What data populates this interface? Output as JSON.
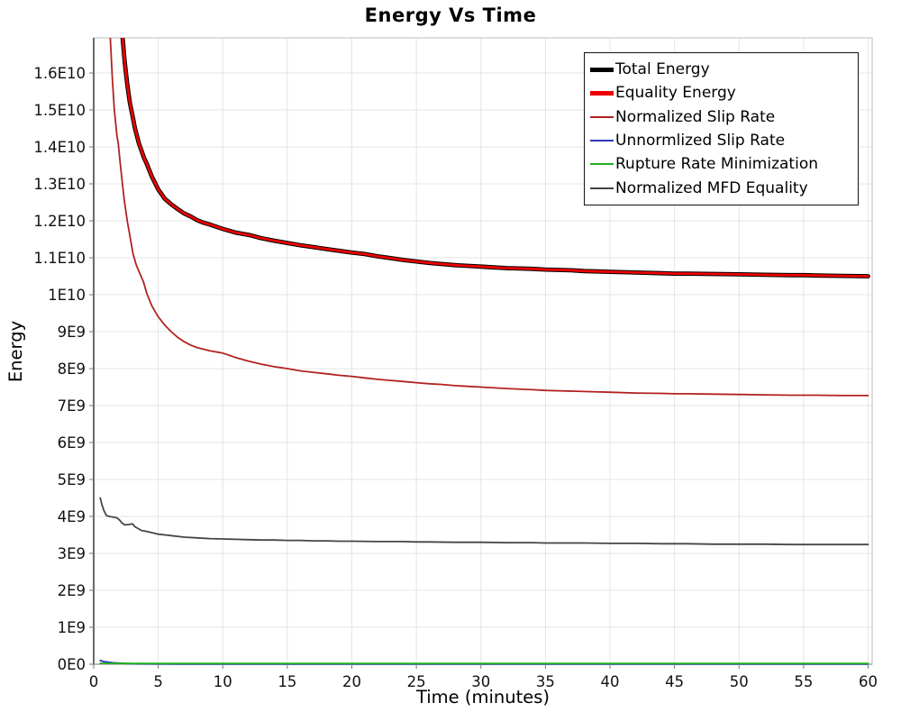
{
  "chart_data": {
    "type": "line",
    "title": "Energy Vs Time",
    "xlabel": "Time (minutes)",
    "ylabel": "Energy",
    "xlim": [
      0,
      60.3
    ],
    "ylim": [
      0,
      16970000000
    ],
    "grid": true,
    "legend_position": "top-right",
    "x_ticks": [
      0,
      5,
      10,
      15,
      20,
      25,
      30,
      35,
      40,
      45,
      50,
      55,
      60
    ],
    "y_ticks": [
      {
        "value": 0,
        "label": "0E0"
      },
      {
        "value": 1,
        "label": "1E9"
      },
      {
        "value": 2,
        "label": "2E9"
      },
      {
        "value": 3,
        "label": "3E9"
      },
      {
        "value": 4,
        "label": "4E9"
      },
      {
        "value": 5,
        "label": "5E9"
      },
      {
        "value": 6,
        "label": "6E9"
      },
      {
        "value": 7,
        "label": "7E9"
      },
      {
        "value": 8,
        "label": "8E9"
      },
      {
        "value": 9,
        "label": "9E9"
      },
      {
        "value": 10,
        "label": "1E10"
      },
      {
        "value": 11,
        "label": "1.1E10"
      },
      {
        "value": 12,
        "label": "1.2E10"
      },
      {
        "value": 13,
        "label": "1.3E10"
      },
      {
        "value": 14,
        "label": "1.4E10"
      },
      {
        "value": 15,
        "label": "1.5E10"
      },
      {
        "value": 16,
        "label": "1.6E10"
      }
    ],
    "y_values_unit": "1E9",
    "colors": {
      "background": "#ffffff",
      "grid": "#e4e4e4",
      "frame": "#c9c9c9",
      "left_spine": "#3c3c3c",
      "tick": "#777777",
      "tick_label": "#111111"
    },
    "series": [
      {
        "name": "Total Energy",
        "color": "#000000",
        "line_width": 4.8,
        "points": [
          [
            1.85,
            24
          ],
          [
            2.0,
            20.5
          ],
          [
            2.23,
            17.0
          ],
          [
            2.4,
            16.3
          ],
          [
            2.6,
            15.7
          ],
          [
            2.8,
            15.2
          ],
          [
            3.0,
            14.85
          ],
          [
            3.2,
            14.5
          ],
          [
            3.5,
            14.1
          ],
          [
            3.9,
            13.7
          ],
          [
            4.1,
            13.55
          ],
          [
            4.5,
            13.2
          ],
          [
            5,
            12.85
          ],
          [
            5.5,
            12.6
          ],
          [
            6,
            12.45
          ],
          [
            6.5,
            12.32
          ],
          [
            7,
            12.2
          ],
          [
            7.5,
            12.12
          ],
          [
            8,
            12.02
          ],
          [
            8.5,
            11.95
          ],
          [
            9,
            11.9
          ],
          [
            10,
            11.78
          ],
          [
            11,
            11.68
          ],
          [
            12,
            11.62
          ],
          [
            13,
            11.53
          ],
          [
            14,
            11.46
          ],
          [
            15,
            11.4
          ],
          [
            16,
            11.34
          ],
          [
            17,
            11.29
          ],
          [
            18,
            11.24
          ],
          [
            19,
            11.19
          ],
          [
            20,
            11.14
          ],
          [
            21,
            11.1
          ],
          [
            22,
            11.04
          ],
          [
            23,
            10.99
          ],
          [
            24,
            10.94
          ],
          [
            25,
            10.9
          ],
          [
            26,
            10.86
          ],
          [
            27,
            10.83
          ],
          [
            28,
            10.8
          ],
          [
            29,
            10.78
          ],
          [
            30,
            10.76
          ],
          [
            31,
            10.74
          ],
          [
            32,
            10.72
          ],
          [
            33,
            10.71
          ],
          [
            34,
            10.7
          ],
          [
            35,
            10.68
          ],
          [
            36,
            10.67
          ],
          [
            37,
            10.66
          ],
          [
            38,
            10.64
          ],
          [
            39,
            10.63
          ],
          [
            40,
            10.62
          ],
          [
            42,
            10.6
          ],
          [
            44,
            10.58
          ],
          [
            45,
            10.57
          ],
          [
            46,
            10.57
          ],
          [
            48,
            10.56
          ],
          [
            50,
            10.55
          ],
          [
            52,
            10.54
          ],
          [
            54,
            10.53
          ],
          [
            55,
            10.53
          ],
          [
            56,
            10.52
          ],
          [
            58,
            10.51
          ],
          [
            60,
            10.5
          ]
        ]
      },
      {
        "name": "Equality Energy",
        "color": "#ee0000",
        "line_width": 2.8,
        "points": [
          [
            1.85,
            24
          ],
          [
            2.0,
            20.5
          ],
          [
            2.23,
            17.0
          ],
          [
            2.4,
            16.3
          ],
          [
            2.6,
            15.7
          ],
          [
            2.8,
            15.2
          ],
          [
            3.0,
            14.85
          ],
          [
            3.2,
            14.5
          ],
          [
            3.5,
            14.1
          ],
          [
            3.9,
            13.7
          ],
          [
            4.1,
            13.55
          ],
          [
            4.5,
            13.2
          ],
          [
            5,
            12.85
          ],
          [
            5.5,
            12.6
          ],
          [
            6,
            12.45
          ],
          [
            6.5,
            12.32
          ],
          [
            7,
            12.2
          ],
          [
            7.5,
            12.12
          ],
          [
            8,
            12.02
          ],
          [
            8.5,
            11.95
          ],
          [
            9,
            11.9
          ],
          [
            10,
            11.78
          ],
          [
            11,
            11.68
          ],
          [
            12,
            11.62
          ],
          [
            13,
            11.53
          ],
          [
            14,
            11.46
          ],
          [
            15,
            11.4
          ],
          [
            16,
            11.34
          ],
          [
            17,
            11.29
          ],
          [
            18,
            11.24
          ],
          [
            19,
            11.19
          ],
          [
            20,
            11.14
          ],
          [
            21,
            11.1
          ],
          [
            22,
            11.04
          ],
          [
            23,
            10.99
          ],
          [
            24,
            10.94
          ],
          [
            25,
            10.9
          ],
          [
            26,
            10.86
          ],
          [
            27,
            10.83
          ],
          [
            28,
            10.8
          ],
          [
            29,
            10.78
          ],
          [
            30,
            10.76
          ],
          [
            31,
            10.74
          ],
          [
            32,
            10.72
          ],
          [
            33,
            10.71
          ],
          [
            34,
            10.7
          ],
          [
            35,
            10.68
          ],
          [
            36,
            10.67
          ],
          [
            37,
            10.66
          ],
          [
            38,
            10.64
          ],
          [
            39,
            10.63
          ],
          [
            40,
            10.62
          ],
          [
            42,
            10.6
          ],
          [
            44,
            10.58
          ],
          [
            45,
            10.57
          ],
          [
            46,
            10.57
          ],
          [
            48,
            10.56
          ],
          [
            50,
            10.55
          ],
          [
            52,
            10.54
          ],
          [
            54,
            10.53
          ],
          [
            55,
            10.53
          ],
          [
            56,
            10.52
          ],
          [
            58,
            10.51
          ],
          [
            60,
            10.5
          ]
        ]
      },
      {
        "name": "Normalized Slip Rate",
        "color": "#b22222",
        "line_width": 1.8,
        "points": [
          [
            1.1,
            20
          ],
          [
            1.28,
            17.0
          ],
          [
            1.45,
            15.8
          ],
          [
            1.6,
            15.0
          ],
          [
            1.8,
            14.3
          ],
          [
            1.9,
            14.1
          ],
          [
            2.1,
            13.4
          ],
          [
            2.35,
            12.6
          ],
          [
            2.6,
            12.0
          ],
          [
            2.8,
            11.6
          ],
          [
            3.05,
            11.1
          ],
          [
            3.3,
            10.8
          ],
          [
            3.6,
            10.55
          ],
          [
            3.85,
            10.35
          ],
          [
            4.1,
            10.05
          ],
          [
            4.5,
            9.7
          ],
          [
            5,
            9.4
          ],
          [
            5.5,
            9.18
          ],
          [
            6,
            9.0
          ],
          [
            6.5,
            8.85
          ],
          [
            7,
            8.73
          ],
          [
            7.5,
            8.64
          ],
          [
            8,
            8.57
          ],
          [
            9,
            8.48
          ],
          [
            10,
            8.42
          ],
          [
            11,
            8.3
          ],
          [
            12,
            8.2
          ],
          [
            13,
            8.12
          ],
          [
            14,
            8.05
          ],
          [
            15,
            8.0
          ],
          [
            16,
            7.94
          ],
          [
            17,
            7.9
          ],
          [
            18,
            7.86
          ],
          [
            19,
            7.82
          ],
          [
            20,
            7.79
          ],
          [
            21,
            7.75
          ],
          [
            22,
            7.71
          ],
          [
            23,
            7.68
          ],
          [
            24,
            7.65
          ],
          [
            25,
            7.62
          ],
          [
            26,
            7.59
          ],
          [
            27,
            7.57
          ],
          [
            28,
            7.54
          ],
          [
            29,
            7.52
          ],
          [
            30,
            7.5
          ],
          [
            32,
            7.46
          ],
          [
            34,
            7.43
          ],
          [
            35,
            7.41
          ],
          [
            36,
            7.4
          ],
          [
            38,
            7.38
          ],
          [
            40,
            7.36
          ],
          [
            42,
            7.34
          ],
          [
            44,
            7.33
          ],
          [
            45,
            7.32
          ],
          [
            46,
            7.32
          ],
          [
            48,
            7.31
          ],
          [
            50,
            7.3
          ],
          [
            52,
            7.29
          ],
          [
            54,
            7.28
          ],
          [
            55,
            7.28
          ],
          [
            56,
            7.28
          ],
          [
            58,
            7.27
          ],
          [
            60,
            7.27
          ]
        ]
      },
      {
        "name": "Unnormlized Slip Rate",
        "color": "#2d35b5",
        "line_width": 1.8,
        "points": [
          [
            0.5,
            0.1
          ],
          [
            0.8,
            0.07
          ],
          [
            1,
            0.06
          ],
          [
            1.5,
            0.04
          ],
          [
            2,
            0.03
          ],
          [
            2.5,
            0.02
          ],
          [
            3,
            0.015
          ],
          [
            4,
            0.01
          ],
          [
            5,
            0.008
          ],
          [
            7,
            0.006
          ],
          [
            10,
            0.005
          ],
          [
            15,
            0.004
          ],
          [
            20,
            0.004
          ],
          [
            30,
            0.003
          ],
          [
            40,
            0.003
          ],
          [
            50,
            0.003
          ],
          [
            60,
            0.003
          ]
        ]
      },
      {
        "name": "Rupture Rate Minimization",
        "color": "#21b121",
        "line_width": 1.8,
        "points": [
          [
            0.5,
            0.025
          ],
          [
            5,
            0.02
          ],
          [
            10,
            0.02
          ],
          [
            20,
            0.02
          ],
          [
            30,
            0.02
          ],
          [
            40,
            0.02
          ],
          [
            50,
            0.02
          ],
          [
            60,
            0.02
          ]
        ]
      },
      {
        "name": "Normalized MFD Equality",
        "color": "#454545",
        "line_width": 1.8,
        "points": [
          [
            0.5,
            4.5
          ],
          [
            0.65,
            4.3
          ],
          [
            0.8,
            4.15
          ],
          [
            1.0,
            4.02
          ],
          [
            1.2,
            4.0
          ],
          [
            1.5,
            3.98
          ],
          [
            1.8,
            3.96
          ],
          [
            2.0,
            3.9
          ],
          [
            2.2,
            3.82
          ],
          [
            2.4,
            3.77
          ],
          [
            2.7,
            3.78
          ],
          [
            3.0,
            3.8
          ],
          [
            3.2,
            3.72
          ],
          [
            3.5,
            3.66
          ],
          [
            3.7,
            3.62
          ],
          [
            4.0,
            3.6
          ],
          [
            4.5,
            3.56
          ],
          [
            5,
            3.52
          ],
          [
            5.5,
            3.5
          ],
          [
            6,
            3.48
          ],
          [
            7,
            3.44
          ],
          [
            8,
            3.42
          ],
          [
            9,
            3.4
          ],
          [
            10,
            3.39
          ],
          [
            11,
            3.38
          ],
          [
            12,
            3.37
          ],
          [
            13,
            3.36
          ],
          [
            14,
            3.36
          ],
          [
            15,
            3.35
          ],
          [
            16,
            3.35
          ],
          [
            17,
            3.34
          ],
          [
            18,
            3.34
          ],
          [
            19,
            3.33
          ],
          [
            20,
            3.33
          ],
          [
            22,
            3.32
          ],
          [
            24,
            3.32
          ],
          [
            25,
            3.31
          ],
          [
            26,
            3.31
          ],
          [
            28,
            3.3
          ],
          [
            30,
            3.3
          ],
          [
            32,
            3.29
          ],
          [
            34,
            3.29
          ],
          [
            35,
            3.28
          ],
          [
            36,
            3.28
          ],
          [
            38,
            3.28
          ],
          [
            40,
            3.27
          ],
          [
            42,
            3.27
          ],
          [
            44,
            3.26
          ],
          [
            45,
            3.26
          ],
          [
            46,
            3.26
          ],
          [
            48,
            3.25
          ],
          [
            50,
            3.25
          ],
          [
            52,
            3.25
          ],
          [
            54,
            3.24
          ],
          [
            55,
            3.24
          ],
          [
            56,
            3.24
          ],
          [
            58,
            3.24
          ],
          [
            60,
            3.24
          ]
        ]
      }
    ]
  },
  "legend": {
    "position": "top-right",
    "items": [
      {
        "label": "Total Energy",
        "color": "#000000",
        "thick": true
      },
      {
        "label": "Equality Energy",
        "color": "#ee0000",
        "thick": true
      },
      {
        "label": "Normalized Slip Rate",
        "color": "#b22222",
        "thick": false
      },
      {
        "label": "Unnormlized Slip Rate",
        "color": "#2d35b5",
        "thick": false
      },
      {
        "label": "Rupture Rate Minimization",
        "color": "#21b121",
        "thick": false
      },
      {
        "label": "Normalized MFD Equality",
        "color": "#454545",
        "thick": false
      }
    ]
  }
}
